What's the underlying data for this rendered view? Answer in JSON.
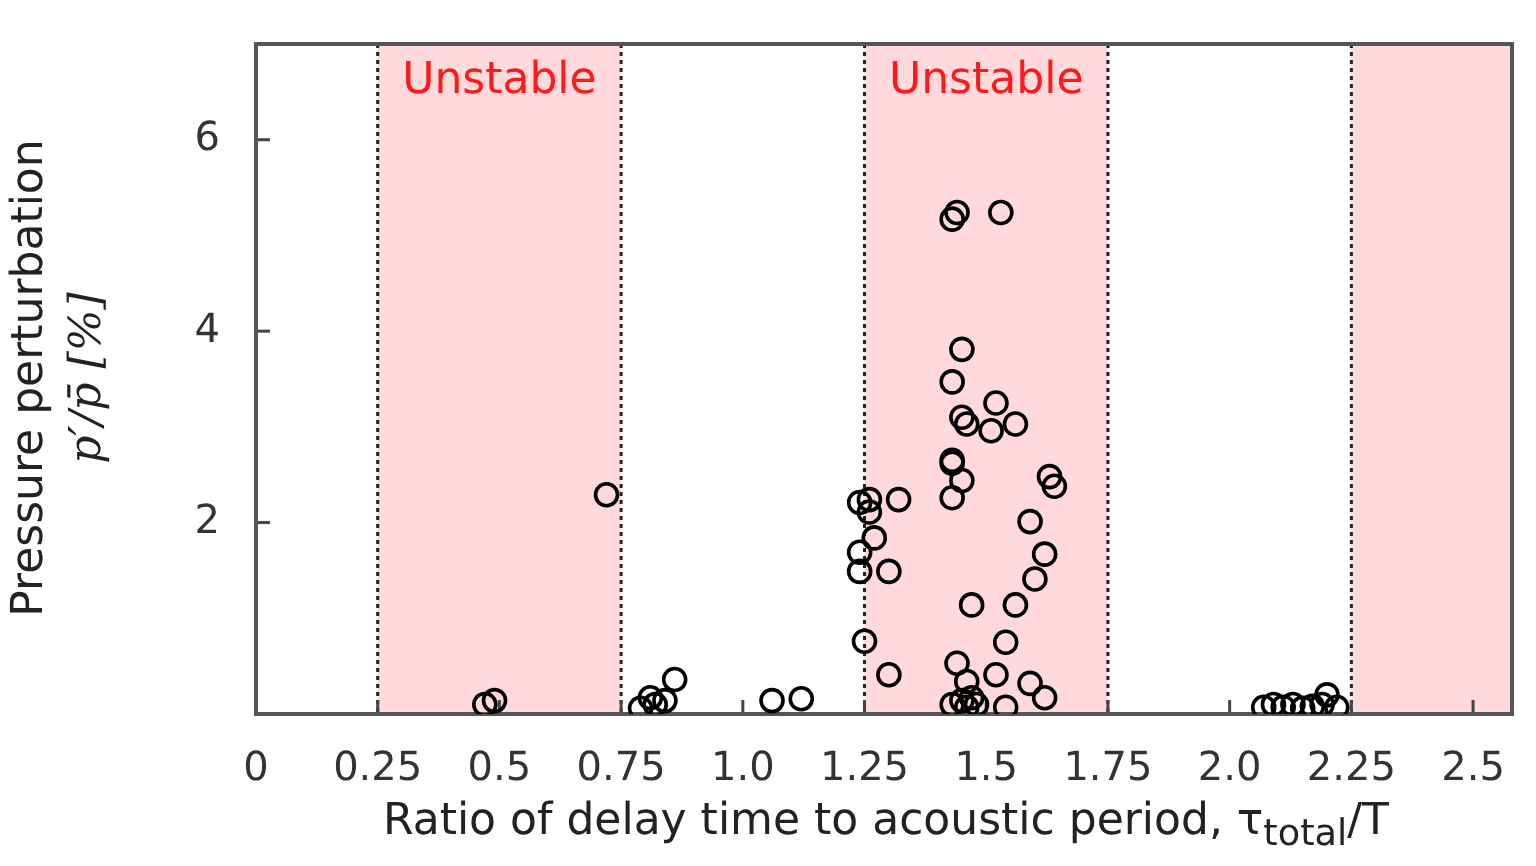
{
  "chart_data": {
    "type": "scatter",
    "xlabel": "Ratio of delay time to acoustic period, τ$_{total}$/T",
    "ylabel": "Pressure perturbation\np′/p̄ [%]",
    "xlim": [
      0,
      2.58
    ],
    "ylim": [
      0,
      7
    ],
    "xticks": [
      0,
      0.25,
      0.5,
      0.75,
      {
        "value": 1,
        "label": "1.0"
      },
      1.25,
      1.5,
      1.75,
      {
        "value": 2,
        "label": "2.0"
      },
      2.25,
      2.5
    ],
    "yticks": [
      2,
      4,
      6
    ],
    "grid": false,
    "legend": false,
    "marker": "circle",
    "bands": [
      {
        "axis": "x",
        "from": 0.25,
        "to": 0.75,
        "label": "Unstable",
        "color": "#ffd9dc"
      },
      {
        "axis": "x",
        "from": 1.25,
        "to": 1.75,
        "label": "Unstable",
        "color": "#ffd9dc"
      },
      {
        "axis": "x",
        "from": 2.25,
        "to": 2.58,
        "color": "#ffd9dc"
      }
    ],
    "ref_lines": [
      {
        "axis": "x",
        "value": 0.25,
        "line_style": "dotted"
      },
      {
        "axis": "x",
        "value": 0.75,
        "line_style": "dotted"
      },
      {
        "axis": "x",
        "value": 1.25,
        "line_style": "dotted"
      },
      {
        "axis": "x",
        "value": 1.75,
        "line_style": "dotted"
      },
      {
        "axis": "x",
        "value": 2.25,
        "line_style": "dotted"
      }
    ],
    "series": [
      {
        "color": "#000000",
        "x": [
          0.47,
          0.49,
          0.72,
          0.79,
          0.81,
          0.82,
          0.84,
          0.86,
          1.06,
          1.12,
          1.24,
          1.26,
          1.26,
          1.24,
          1.24,
          1.27,
          1.3,
          1.25,
          1.3,
          1.32,
          1.43,
          1.44,
          1.53,
          1.45,
          1.43,
          1.52,
          1.45,
          1.46,
          1.51,
          1.56,
          1.43,
          1.43,
          1.45,
          1.43,
          1.63,
          1.64,
          1.59,
          1.62,
          1.6,
          1.47,
          1.56,
          1.54,
          1.44,
          1.52,
          1.59,
          1.62,
          1.54,
          1.46,
          1.43,
          1.46,
          1.48,
          1.47,
          1.45,
          2.07,
          2.09,
          2.11,
          2.13,
          2.15,
          2.17,
          2.19,
          2.2,
          2.22
        ],
        "values": [
          0.1,
          0.14,
          2.29,
          0.06,
          0.17,
          0.1,
          0.14,
          0.36,
          0.14,
          0.16,
          2.21,
          2.24,
          2.11,
          1.69,
          1.49,
          1.84,
          1.49,
          0.76,
          0.41,
          2.24,
          5.17,
          5.24,
          5.24,
          3.81,
          3.47,
          3.25,
          3.1,
          3.03,
          2.96,
          3.03,
          2.65,
          2.62,
          2.44,
          2.26,
          2.48,
          2.38,
          2.01,
          1.67,
          1.41,
          1.14,
          1.14,
          0.75,
          0.53,
          0.41,
          0.32,
          0.17,
          0.07,
          0.34,
          0.1,
          0.07,
          0.1,
          0.17,
          0.14,
          0.07,
          0.1,
          0.07,
          0.1,
          0.06,
          0.08,
          0.1,
          0.2,
          0.07
        ]
      }
    ]
  }
}
